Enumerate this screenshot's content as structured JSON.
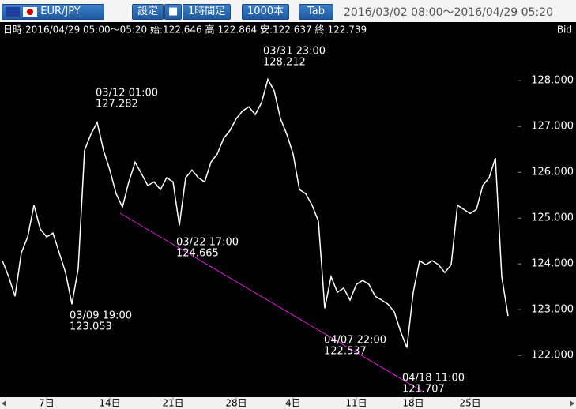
{
  "toolbar": {
    "symbol": "EUR/JPY",
    "buttons": [
      "設定",
      "1時間足",
      "1000本",
      "Tab"
    ],
    "range": "2016/03/02 08:00～2016/04/29 05:20"
  },
  "info": {
    "text": "日時:2016/04/29 05:00～05:20 始:122.646 高:122.864 安:122.637 終:122.739",
    "side": "Bid"
  },
  "chart_data": {
    "type": "line",
    "categories": [
      null,
      null,
      null,
      null,
      null,
      null,
      null,
      "7日",
      null,
      null,
      null,
      null,
      null,
      null,
      null,
      null,
      null,
      "14日",
      null,
      null,
      null,
      null,
      null,
      null,
      null,
      null,
      null,
      "21日",
      null,
      null,
      null,
      null,
      null,
      null,
      null,
      null,
      null,
      "28日",
      null,
      null,
      null,
      null,
      null,
      null,
      null,
      null,
      "4日",
      null,
      null,
      null,
      null,
      null,
      null,
      null,
      null,
      null,
      "11日",
      null,
      null,
      null,
      null,
      null,
      null,
      null,
      null,
      "18日",
      null,
      null,
      null,
      null,
      null,
      null,
      null,
      null,
      "25日",
      null,
      null,
      null,
      null,
      null,
      null
    ],
    "series": [
      {
        "color": "#ffffff",
        "values": [
          124.07,
          123.72,
          123.29,
          124.24,
          124.59,
          125.28,
          124.76,
          124.59,
          124.67,
          124.24,
          123.81,
          123.12,
          123.9,
          126.48,
          126.83,
          127.09,
          126.48,
          126.05,
          125.53,
          125.24,
          125.79,
          126.22,
          125.97,
          125.71,
          125.79,
          125.62,
          125.88,
          125.79,
          124.84,
          125.88,
          126.05,
          125.88,
          125.79,
          126.22,
          126.4,
          126.74,
          126.91,
          127.17,
          127.34,
          127.43,
          127.26,
          127.52,
          128.03,
          127.78,
          127.17,
          126.83,
          126.4,
          125.62,
          125.53,
          125.28,
          124.93,
          123.03,
          123.72,
          123.38,
          123.47,
          123.21,
          123.55,
          123.64,
          123.55,
          123.29,
          123.21,
          123.12,
          122.95,
          122.52,
          122.17,
          123.38,
          124.07,
          123.98,
          124.07,
          123.98,
          123.81,
          123.98,
          125.28,
          125.19,
          125.1,
          125.19,
          125.71,
          125.88,
          126.31,
          123.72,
          122.86
        ]
      }
    ],
    "ylim": [
      121.14,
      129.28
    ],
    "yticks": [
      {
        "value": 122,
        "label": "122.000"
      },
      {
        "value": 123,
        "label": "123.000"
      },
      {
        "value": 124,
        "label": "124.000"
      },
      {
        "value": 125,
        "label": "125.000"
      },
      {
        "value": 126,
        "label": "126.000"
      },
      {
        "value": 127,
        "label": "127.000"
      },
      {
        "value": 128,
        "label": "128.000"
      }
    ],
    "annotations": [
      {
        "time": "03/09 19:00",
        "price": "123.053"
      },
      {
        "time": "03/12 01:00",
        "price": "127.282"
      },
      {
        "time": "03/22 17:00",
        "price": "124.665"
      },
      {
        "time": "03/31 23:00",
        "price": "128.212"
      },
      {
        "time": "04/07 22:00",
        "price": "122.537"
      },
      {
        "time": "04/18 11:00",
        "price": "121.707"
      }
    ]
  }
}
